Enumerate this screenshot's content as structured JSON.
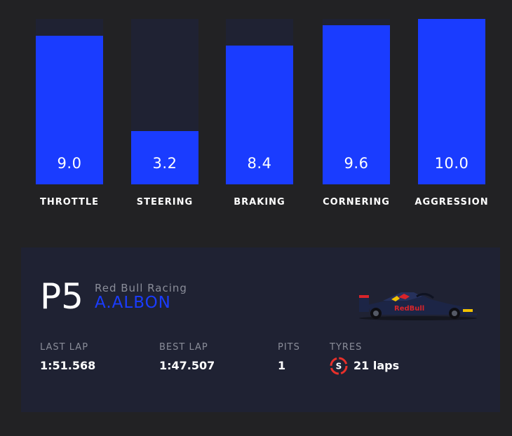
{
  "stats": [
    {
      "label": "THROTTLE",
      "value": "9.0",
      "fraction": 0.9
    },
    {
      "label": "STEERING",
      "value": "3.2",
      "fraction": 0.32
    },
    {
      "label": "BRAKING",
      "value": "8.4",
      "fraction": 0.84
    },
    {
      "label": "CORNERING",
      "value": "9.6",
      "fraction": 0.96
    },
    {
      "label": "AGGRESSION",
      "value": "10.0",
      "fraction": 1.0
    }
  ],
  "card": {
    "position": "P5",
    "team": "Red Bull Racing",
    "driver": "A.ALBON",
    "car_icon": "red-bull-car-icon",
    "tyre_icon": "soft-tyre-icon",
    "last_lap": {
      "label": "LAST LAP",
      "value": "1:51.568"
    },
    "best_lap": {
      "label": "BEST LAP",
      "value": "1:47.507"
    },
    "pits": {
      "label": "PITS",
      "value": "1"
    },
    "tyres": {
      "label": "TYRES",
      "compound": "S",
      "value": "21 laps"
    }
  },
  "colors": {
    "background": "#222224",
    "panel": "#1f2233",
    "accent": "#1a3cff",
    "muted_text": "#8a8d99",
    "soft_tyre": "#e8302a"
  }
}
